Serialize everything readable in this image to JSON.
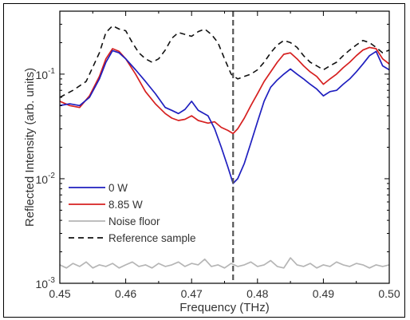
{
  "chart_data": {
    "type": "line",
    "title": "",
    "xlabel": "Frequency (THz)",
    "ylabel": "Reflected Intensity (arb. units)",
    "xlim": [
      0.45,
      0.5
    ],
    "ylim": [
      0.001,
      0.4
    ],
    "yscale": "log",
    "grid": false,
    "legend_position": "bottom-left",
    "x_ticks": [
      "0.45",
      "0.46",
      "0.47",
      "0.48",
      "0.49",
      "0.50"
    ],
    "y_ticks": [
      {
        "base": "10",
        "exp": "-3"
      },
      {
        "base": "10",
        "exp": "-2"
      },
      {
        "base": "10",
        "exp": "-1"
      }
    ],
    "vline": {
      "x": 0.4763,
      "style": "dashed",
      "color": "#555555"
    },
    "series": [
      {
        "name": "0 W",
        "color": "#1f1fbf",
        "dash": "",
        "x": [
          0.45,
          0.4515,
          0.453,
          0.4545,
          0.456,
          0.457,
          0.458,
          0.459,
          0.46,
          0.4615,
          0.463,
          0.4645,
          0.466,
          0.467,
          0.468,
          0.469,
          0.47,
          0.471,
          0.4725,
          0.4735,
          0.4745,
          0.4755,
          0.4763,
          0.477,
          0.478,
          0.479,
          0.48,
          0.481,
          0.482,
          0.483,
          0.484,
          0.485,
          0.486,
          0.487,
          0.488,
          0.489,
          0.49,
          0.491,
          0.492,
          0.493,
          0.494,
          0.495,
          0.496,
          0.497,
          0.498,
          0.499,
          0.5
        ],
        "y": [
          0.05,
          0.052,
          0.05,
          0.06,
          0.09,
          0.13,
          0.168,
          0.16,
          0.14,
          0.11,
          0.085,
          0.065,
          0.048,
          0.045,
          0.042,
          0.046,
          0.055,
          0.045,
          0.04,
          0.03,
          0.02,
          0.013,
          0.009,
          0.01,
          0.014,
          0.022,
          0.035,
          0.055,
          0.075,
          0.088,
          0.1,
          0.112,
          0.1,
          0.09,
          0.08,
          0.072,
          0.062,
          0.068,
          0.07,
          0.08,
          0.09,
          0.105,
          0.125,
          0.15,
          0.165,
          0.12,
          0.11
        ]
      },
      {
        "name": "8.85 W",
        "color": "#d62020",
        "dash": "",
        "x": [
          0.45,
          0.4515,
          0.453,
          0.4545,
          0.456,
          0.457,
          0.458,
          0.459,
          0.46,
          0.4615,
          0.463,
          0.4645,
          0.466,
          0.467,
          0.468,
          0.469,
          0.47,
          0.471,
          0.4725,
          0.4735,
          0.4745,
          0.4755,
          0.4763,
          0.477,
          0.478,
          0.479,
          0.48,
          0.481,
          0.482,
          0.483,
          0.484,
          0.485,
          0.486,
          0.487,
          0.488,
          0.489,
          0.49,
          0.491,
          0.492,
          0.493,
          0.494,
          0.495,
          0.496,
          0.497,
          0.498,
          0.499,
          0.5
        ],
        "y": [
          0.055,
          0.05,
          0.048,
          0.062,
          0.095,
          0.14,
          0.175,
          0.165,
          0.14,
          0.1,
          0.068,
          0.052,
          0.042,
          0.038,
          0.036,
          0.037,
          0.04,
          0.036,
          0.034,
          0.035,
          0.031,
          0.029,
          0.027,
          0.03,
          0.038,
          0.05,
          0.065,
          0.085,
          0.105,
          0.13,
          0.155,
          0.16,
          0.14,
          0.12,
          0.105,
          0.095,
          0.08,
          0.09,
          0.1,
          0.115,
          0.13,
          0.15,
          0.17,
          0.18,
          0.175,
          0.14,
          0.125
        ]
      },
      {
        "name": "Noise floor",
        "color": "#b5b5b5",
        "dash": "",
        "x": [
          0.45,
          0.451,
          0.452,
          0.453,
          0.454,
          0.455,
          0.456,
          0.457,
          0.458,
          0.459,
          0.46,
          0.461,
          0.462,
          0.463,
          0.464,
          0.465,
          0.466,
          0.467,
          0.468,
          0.469,
          0.47,
          0.471,
          0.472,
          0.473,
          0.474,
          0.475,
          0.476,
          0.477,
          0.478,
          0.479,
          0.48,
          0.481,
          0.482,
          0.483,
          0.484,
          0.485,
          0.486,
          0.487,
          0.488,
          0.489,
          0.49,
          0.491,
          0.492,
          0.493,
          0.494,
          0.495,
          0.496,
          0.497,
          0.498,
          0.499,
          0.5
        ],
        "y": [
          0.0015,
          0.0014,
          0.00155,
          0.00145,
          0.0016,
          0.0014,
          0.0015,
          0.00145,
          0.00155,
          0.0014,
          0.0015,
          0.0016,
          0.00145,
          0.0015,
          0.0014,
          0.00155,
          0.00145,
          0.0015,
          0.0016,
          0.00145,
          0.00155,
          0.0015,
          0.0017,
          0.00145,
          0.0015,
          0.0014,
          0.00155,
          0.00145,
          0.0015,
          0.0016,
          0.00145,
          0.0015,
          0.00165,
          0.00145,
          0.0014,
          0.00175,
          0.0015,
          0.00145,
          0.00155,
          0.0014,
          0.0015,
          0.00145,
          0.0016,
          0.0015,
          0.00145,
          0.00155,
          0.0015,
          0.0014,
          0.0015,
          0.00145,
          0.0015
        ]
      },
      {
        "name": "Reference sample",
        "color": "#111111",
        "dash": "7,5",
        "x": [
          0.45,
          0.452,
          0.454,
          0.456,
          0.457,
          0.458,
          0.459,
          0.46,
          0.461,
          0.462,
          0.463,
          0.464,
          0.465,
          0.466,
          0.467,
          0.468,
          0.469,
          0.47,
          0.471,
          0.472,
          0.473,
          0.474,
          0.475,
          0.476,
          0.477,
          0.478,
          0.479,
          0.48,
          0.481,
          0.482,
          0.483,
          0.484,
          0.485,
          0.486,
          0.487,
          0.488,
          0.489,
          0.49,
          0.491,
          0.492,
          0.493,
          0.494,
          0.495,
          0.496,
          0.497,
          0.498,
          0.499,
          0.5
        ],
        "y": [
          0.06,
          0.07,
          0.085,
          0.16,
          0.25,
          0.29,
          0.27,
          0.26,
          0.2,
          0.16,
          0.14,
          0.13,
          0.14,
          0.17,
          0.22,
          0.25,
          0.24,
          0.23,
          0.255,
          0.27,
          0.24,
          0.2,
          0.14,
          0.1,
          0.09,
          0.095,
          0.1,
          0.11,
          0.13,
          0.16,
          0.19,
          0.21,
          0.2,
          0.18,
          0.15,
          0.13,
          0.12,
          0.11,
          0.12,
          0.13,
          0.15,
          0.17,
          0.19,
          0.21,
          0.2,
          0.18,
          0.16,
          0.17
        ]
      }
    ]
  }
}
